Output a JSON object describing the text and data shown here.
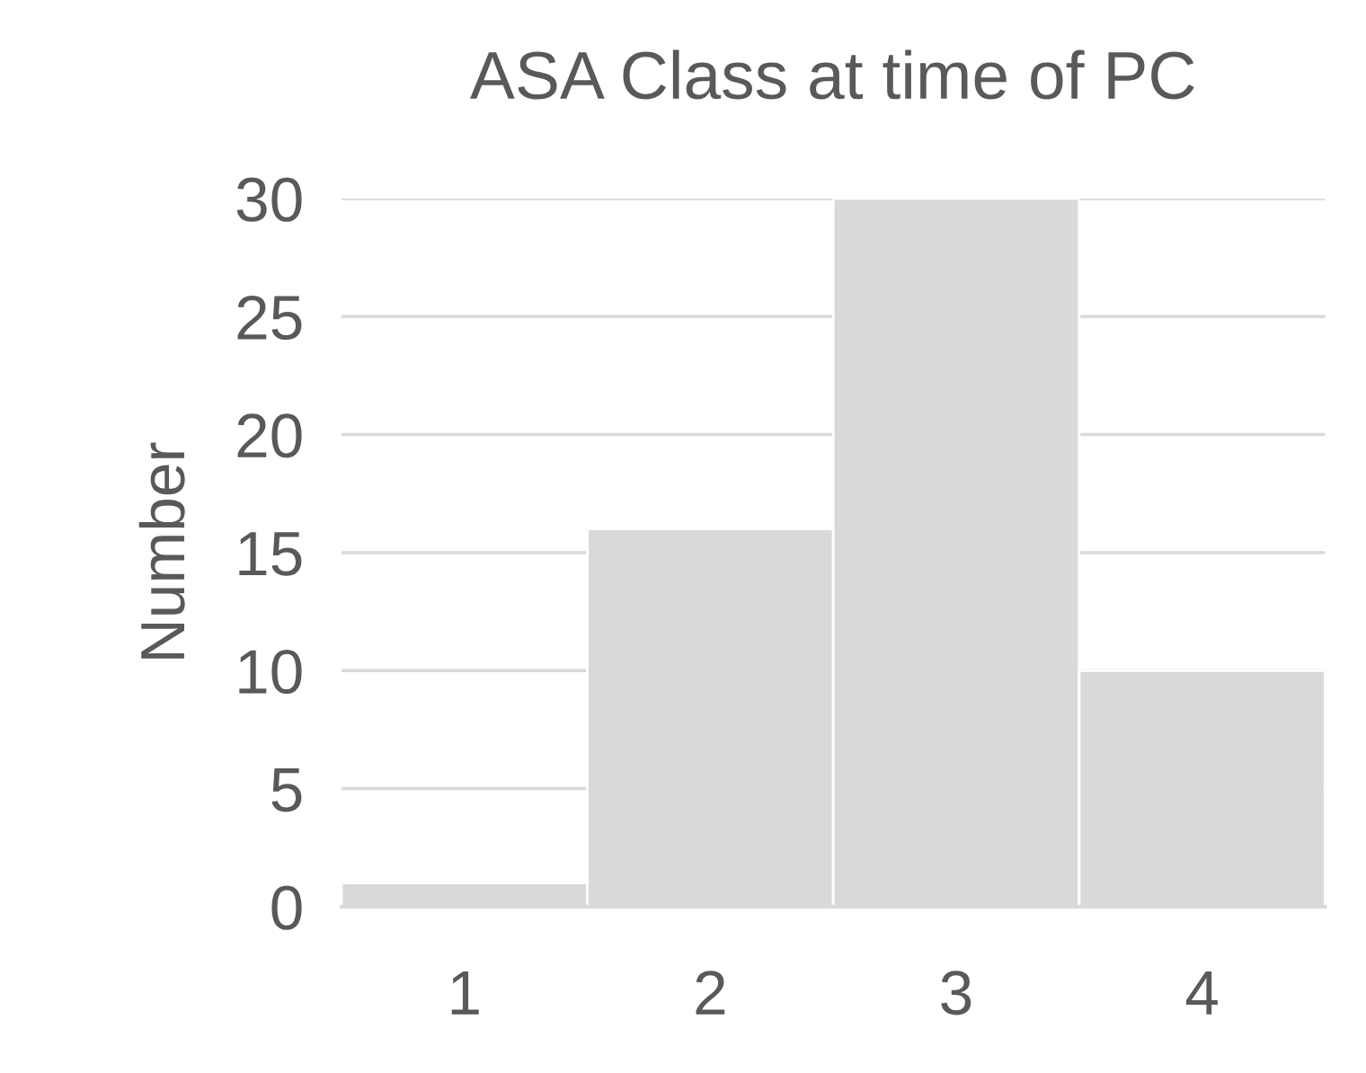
{
  "chart_data": {
    "type": "bar",
    "title": "ASA Class at time of PC",
    "ylabel": "Number",
    "categories": [
      "1",
      "2",
      "3",
      "4"
    ],
    "values": [
      1,
      16,
      30,
      10
    ],
    "color": "#d9d9d9",
    "ylim": [
      0,
      30
    ],
    "yticks": [
      0,
      5,
      10,
      15,
      20,
      25,
      30
    ],
    "grid": "y"
  }
}
